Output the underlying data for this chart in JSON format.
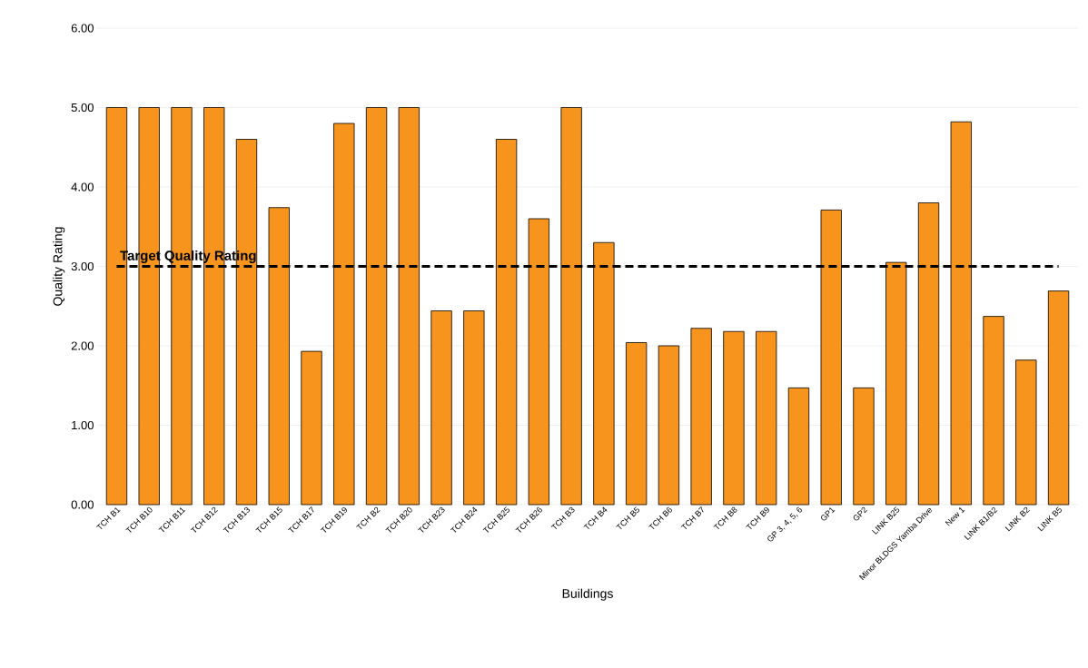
{
  "chart_data": {
    "type": "bar",
    "xlabel": "Buildings",
    "ylabel": "Quality Rating",
    "categories": [
      "TCH B1",
      "TCH B10",
      "TCH B11",
      "TCH B12",
      "TCH B13",
      "TCH B15",
      "TCH B17",
      "TCH B19",
      "TCH B2",
      "TCH B20",
      "TCH B23",
      "TCH B24",
      "TCH B25",
      "TCH B26",
      "TCH B3",
      "TCH B4",
      "TCH B5",
      "TCH B6",
      "TCH B7",
      "TCH B8",
      "TCH B9",
      "GP 3, 4, 5, 6",
      "GP1",
      "GP2",
      "LINK B25",
      "Minor BLDGS Yamba Drive",
      "New 1",
      "LINK B1/B2",
      "LINK B2",
      "LINK B5"
    ],
    "values": [
      5.0,
      5.0,
      5.0,
      5.0,
      4.6,
      3.74,
      1.93,
      4.8,
      5.0,
      5.0,
      2.44,
      2.44,
      4.6,
      3.6,
      5.0,
      3.3,
      2.04,
      2.0,
      2.22,
      2.18,
      2.18,
      1.47,
      3.71,
      1.47,
      3.05,
      3.8,
      4.82,
      2.37,
      1.82,
      2.69
    ],
    "color": "#f7941d",
    "ylim": [
      0,
      6
    ],
    "yticks": [
      {
        "value": 0,
        "label": "0.00"
      },
      {
        "value": 1,
        "label": "1.00"
      },
      {
        "value": 2,
        "label": "2.00"
      },
      {
        "value": 3,
        "label": "3.00"
      },
      {
        "value": 4,
        "label": "4.00"
      },
      {
        "value": 5,
        "label": "5.00"
      },
      {
        "value": 6,
        "label": "6.00"
      }
    ],
    "grid": "y",
    "ref_lines": [
      {
        "axis": "y",
        "value": 3,
        "label": "Target Quality Rating",
        "color": "#000000",
        "line_style": "dashed"
      }
    ]
  }
}
